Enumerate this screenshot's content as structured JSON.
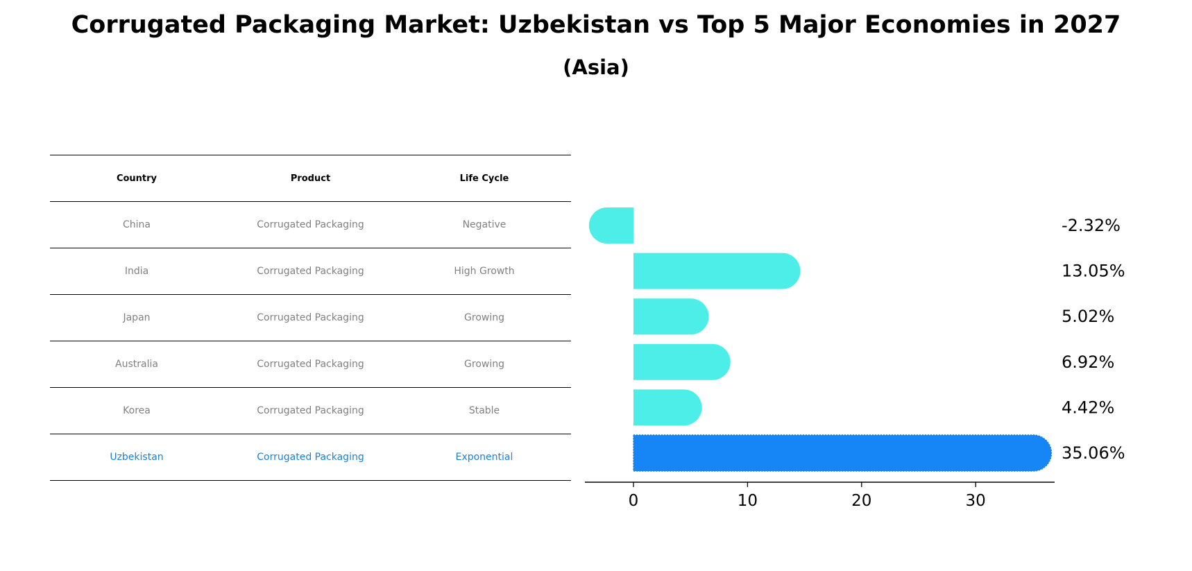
{
  "title": "Corrugated Packaging Market: Uzbekistan vs Top 5 Major Economies in 2027",
  "subtitle": "(Asia)",
  "colors": {
    "bar": "#4deee8",
    "highlight_bar": "#1685f5",
    "highlight_text": "#1f7fd4",
    "muted_text": "#808080"
  },
  "table": {
    "headers": {
      "country": "Country",
      "product": "Product",
      "life_cycle": "Life Cycle"
    },
    "rows": [
      {
        "country": "China",
        "product": "Corrugated Packaging",
        "life_cycle": "Negative"
      },
      {
        "country": "India",
        "product": "Corrugated Packaging",
        "life_cycle": "High Growth"
      },
      {
        "country": "Japan",
        "product": "Corrugated Packaging",
        "life_cycle": "Growing"
      },
      {
        "country": "Australia",
        "product": "Corrugated Packaging",
        "life_cycle": "Growing"
      },
      {
        "country": "Korea",
        "product": "Corrugated Packaging",
        "life_cycle": "Stable"
      },
      {
        "country": "Uzbekistan",
        "product": "Corrugated Packaging",
        "life_cycle": "Exponential"
      }
    ]
  },
  "chart_data": {
    "type": "bar",
    "orientation": "horizontal",
    "categories": [
      "China",
      "India",
      "Japan",
      "Australia",
      "Korea",
      "Uzbekistan"
    ],
    "values": [
      -2.32,
      13.05,
      5.02,
      6.92,
      4.42,
      35.06
    ],
    "value_labels": [
      "-2.32%",
      "13.05%",
      "5.02%",
      "6.92%",
      "4.42%",
      "35.06%"
    ],
    "highlight": "Uzbekistan",
    "xlim": [
      -4.2,
      37
    ],
    "xticks": [
      0,
      10,
      20,
      30
    ],
    "xtick_labels": [
      "0",
      "10",
      "20",
      "30"
    ],
    "title": "",
    "xlabel": "",
    "ylabel": "",
    "grid": false
  }
}
